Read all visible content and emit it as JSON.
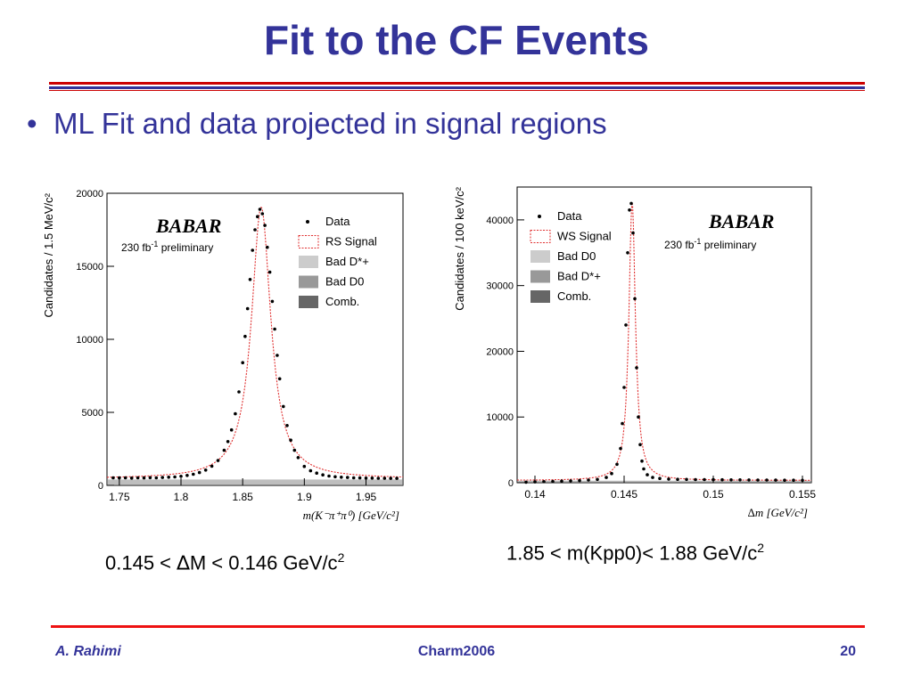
{
  "slide": {
    "title": "Fit to the CF Events",
    "bullet": "ML Fit and data projected in signal regions",
    "bullet_marker": "•",
    "caption_left_pre": "0.145 < ",
    "caption_left_delta": "∆",
    "caption_left_post": "M < 0.146 GeV/c",
    "caption_left_sup": "2",
    "caption_right_main": "1.85 < m(Kpp0)< 1.88 GeV/c",
    "caption_right_sup": "2",
    "footer_left": "A. Rahimi",
    "footer_center": "Charm2006",
    "footer_right": "20"
  },
  "colors": {
    "title": "#333399",
    "rule_red": "#cc0000",
    "rule_blue": "#333399",
    "signal_line": "#e03030",
    "data_points": "#000000"
  },
  "chart_data": [
    {
      "type": "line",
      "ylabel": "Candidates / 1.5 MeV/c²",
      "xlabel": "m(K⁻π⁺π⁰) [GeV/c²]",
      "xlim": [
        1.74,
        1.98
      ],
      "ylim": [
        0,
        20000
      ],
      "xticks": [
        "1.75",
        "1.8",
        "1.85",
        "1.9",
        "1.95"
      ],
      "yticks": [
        "0",
        "5000",
        "10000",
        "15000",
        "20000"
      ],
      "logo": "BABAR",
      "lumi": "230 fb",
      "lumi_sup": "-1",
      "lumi_text": "preliminary",
      "legend": [
        "Data",
        "RS Signal",
        "Bad D*+",
        "Bad D0",
        "Comb."
      ],
      "legend_colors": [
        "#000000",
        "#e03030",
        "#cccccc",
        "#999999",
        "#666666"
      ],
      "peak": {
        "x0": 1.865,
        "amplitude": 18600,
        "width": 0.0095,
        "background": 450
      },
      "series": [
        {
          "name": "Data",
          "x": [
            1.745,
            1.75,
            1.755,
            1.76,
            1.765,
            1.77,
            1.775,
            1.78,
            1.785,
            1.79,
            1.795,
            1.8,
            1.805,
            1.81,
            1.815,
            1.82,
            1.825,
            1.83,
            1.835,
            1.838,
            1.841,
            1.844,
            1.847,
            1.85,
            1.852,
            1.854,
            1.856,
            1.858,
            1.86,
            1.862,
            1.864,
            1.866,
            1.868,
            1.87,
            1.872,
            1.874,
            1.876,
            1.878,
            1.88,
            1.883,
            1.886,
            1.889,
            1.892,
            1.895,
            1.9,
            1.905,
            1.91,
            1.915,
            1.92,
            1.925,
            1.93,
            1.935,
            1.94,
            1.945,
            1.95,
            1.955,
            1.96,
            1.965,
            1.97,
            1.975
          ],
          "y": [
            520,
            510,
            520,
            500,
            520,
            510,
            530,
            520,
            540,
            560,
            580,
            620,
            680,
            760,
            880,
            1050,
            1320,
            1700,
            2400,
            3000,
            3800,
            4900,
            6400,
            8400,
            10200,
            12100,
            14100,
            16100,
            17500,
            18400,
            18900,
            18600,
            17800,
            16300,
            14600,
            12600,
            10700,
            8900,
            7300,
            5400,
            4100,
            3100,
            2400,
            1900,
            1300,
            1000,
            840,
            720,
            640,
            590,
            560,
            540,
            520,
            510,
            500,
            500,
            490,
            490,
            480,
            480
          ]
        }
      ]
    },
    {
      "type": "line",
      "ylabel": "Candidates / 100 keV/c²",
      "xlabel": "∆m [GeV/c²]",
      "xlim": [
        0.139,
        0.1555
      ],
      "ylim": [
        0,
        45000
      ],
      "xticks": [
        "0.14",
        "0.145",
        "0.15",
        "0.155"
      ],
      "yticks": [
        "0",
        "10000",
        "20000",
        "30000",
        "40000"
      ],
      "logo": "BABAR",
      "lumi": "230 fb",
      "lumi_sup": "-1",
      "lumi_text": "preliminary",
      "legend": [
        "Data",
        "WS Signal",
        "Bad D0",
        "Bad D*+",
        "Comb."
      ],
      "legend_colors": [
        "#000000",
        "#e03030",
        "#cccccc",
        "#999999",
        "#666666"
      ],
      "peak": {
        "x0": 0.14545,
        "amplitude": 42500,
        "width": 0.00022,
        "background": 350
      },
      "series": [
        {
          "name": "Data",
          "x": [
            0.1395,
            0.14,
            0.1405,
            0.141,
            0.1415,
            0.142,
            0.1425,
            0.143,
            0.1435,
            0.144,
            0.1443,
            0.1446,
            0.1448,
            0.1449,
            0.145,
            0.1451,
            0.1452,
            0.1453,
            0.1454,
            0.1455,
            0.1456,
            0.1457,
            0.1458,
            0.1459,
            0.146,
            0.1461,
            0.1463,
            0.1466,
            0.147,
            0.1475,
            0.148,
            0.1485,
            0.149,
            0.1495,
            0.15,
            0.1505,
            0.151,
            0.1515,
            0.152,
            0.1525,
            0.153,
            0.1535,
            0.154,
            0.1545,
            0.155
          ],
          "y": [
            80,
            120,
            160,
            200,
            240,
            280,
            330,
            400,
            500,
            800,
            1400,
            2800,
            5200,
            9000,
            14500,
            24000,
            35000,
            41500,
            42500,
            38000,
            28000,
            17500,
            10000,
            5800,
            3300,
            2100,
            1200,
            800,
            650,
            560,
            520,
            500,
            480,
            470,
            460,
            450,
            440,
            430,
            420,
            410,
            400,
            390,
            380,
            380,
            370
          ]
        }
      ]
    }
  ]
}
